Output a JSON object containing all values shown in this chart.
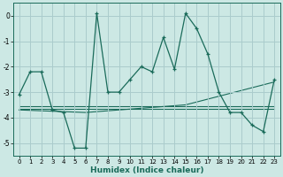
{
  "xlabel": "Humidex (Indice chaleur)",
  "bg_color": "#cce8e4",
  "grid_color": "#aacccc",
  "line_color": "#1a6b5a",
  "xlim": [
    -0.5,
    23.5
  ],
  "ylim": [
    -5.5,
    0.5
  ],
  "yticks": [
    0,
    -1,
    -2,
    -3,
    -4,
    -5
  ],
  "xticks": [
    0,
    1,
    2,
    3,
    4,
    5,
    6,
    7,
    8,
    9,
    10,
    11,
    12,
    13,
    14,
    15,
    16,
    17,
    18,
    19,
    20,
    21,
    22,
    23
  ],
  "curve1_x": [
    0,
    1,
    2,
    3,
    4,
    5,
    6,
    7,
    8,
    9,
    10,
    11,
    12,
    13,
    14,
    15,
    16,
    17,
    18,
    19,
    20,
    21,
    22,
    23
  ],
  "curve1_y": [
    -3.1,
    -2.2,
    -2.2,
    -3.7,
    -3.8,
    -5.2,
    -5.2,
    0.1,
    -3.0,
    -3.0,
    -2.5,
    -2.0,
    -2.2,
    -0.85,
    -2.1,
    0.1,
    -0.5,
    -1.5,
    -3.0,
    -3.8,
    -3.8,
    -4.3,
    -4.55,
    -2.5
  ],
  "curve2_x": [
    0,
    23
  ],
  "curve2_y": [
    -3.55,
    -3.55
  ],
  "curve3_x": [
    0,
    23
  ],
  "curve3_y": [
    -3.65,
    -3.65
  ],
  "curve4_x": [
    0,
    6,
    15,
    23
  ],
  "curve4_y": [
    -3.7,
    -3.8,
    -3.5,
    -2.6
  ]
}
